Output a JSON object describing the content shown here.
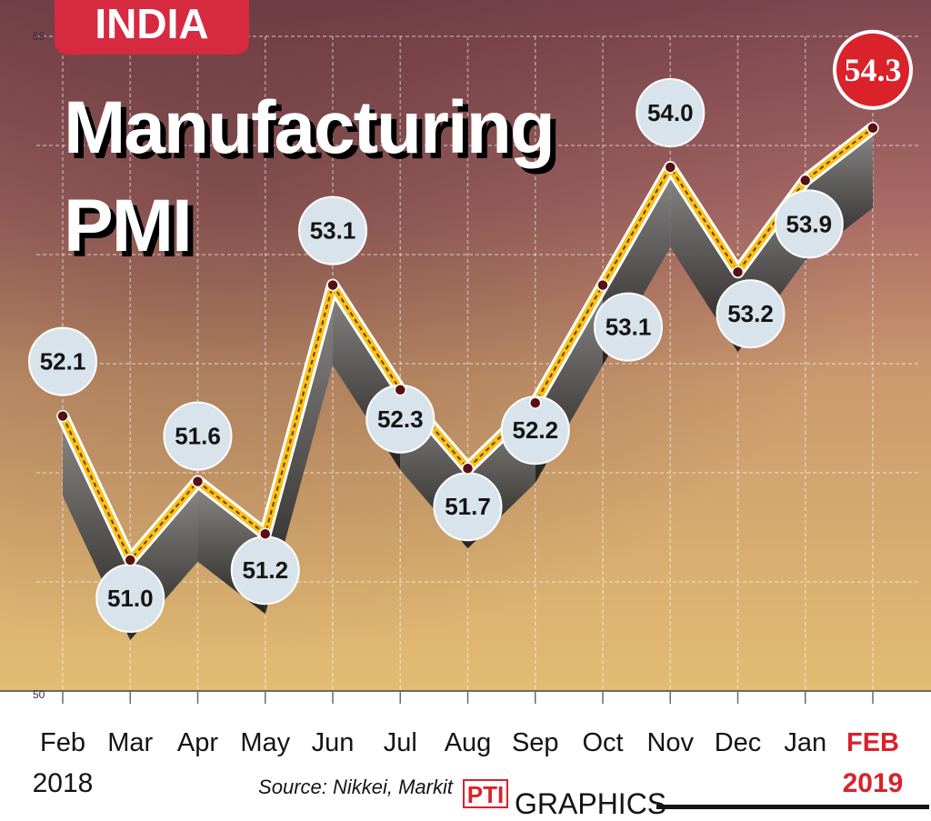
{
  "header": {
    "country_tag": "INDIA",
    "title_line1": "Manufacturing",
    "title_line2": "PMI"
  },
  "footer": {
    "source": "Source: Nikkei, Markit",
    "logo": "PTI",
    "credit": "GRAPHICS"
  },
  "colors": {
    "line": "#f6c21a",
    "line_dash": "#7a3a00",
    "bubble": "#d8e3ec",
    "highlight_bubble": "#d9222a",
    "highlight_text": "#d9222a",
    "country_tag": "#d62a40",
    "background_top": "#8a5057",
    "background_bottom": "#e3bb71"
  },
  "chart_data": {
    "type": "line",
    "title": "Manufacturing PMI",
    "x": [
      "Feb",
      "Mar",
      "Apr",
      "May",
      "Jun",
      "Jul",
      "Aug",
      "Sep",
      "Oct",
      "Nov",
      "Dec",
      "Jan",
      "FEB"
    ],
    "year_labels": [
      {
        "index": 0,
        "label": "2018"
      },
      {
        "index": 12,
        "label": "2019"
      }
    ],
    "series": [
      {
        "values": [
          52.1,
          51.0,
          51.6,
          51.2,
          53.1,
          52.3,
          51.7,
          52.2,
          53.1,
          54.0,
          53.2,
          53.9,
          54.3
        ]
      }
    ],
    "labels": [
      "52.1",
      "51.0",
      "51.6",
      "51.2",
      "53.1",
      "52.3",
      "51.7",
      "52.2",
      "53.1",
      "54.0",
      "53.2",
      "53.9",
      "54.3"
    ],
    "highlight_index": 12,
    "ylim": [
      50,
      55
    ],
    "yticks": [
      "55",
      "50"
    ],
    "grid": true
  }
}
